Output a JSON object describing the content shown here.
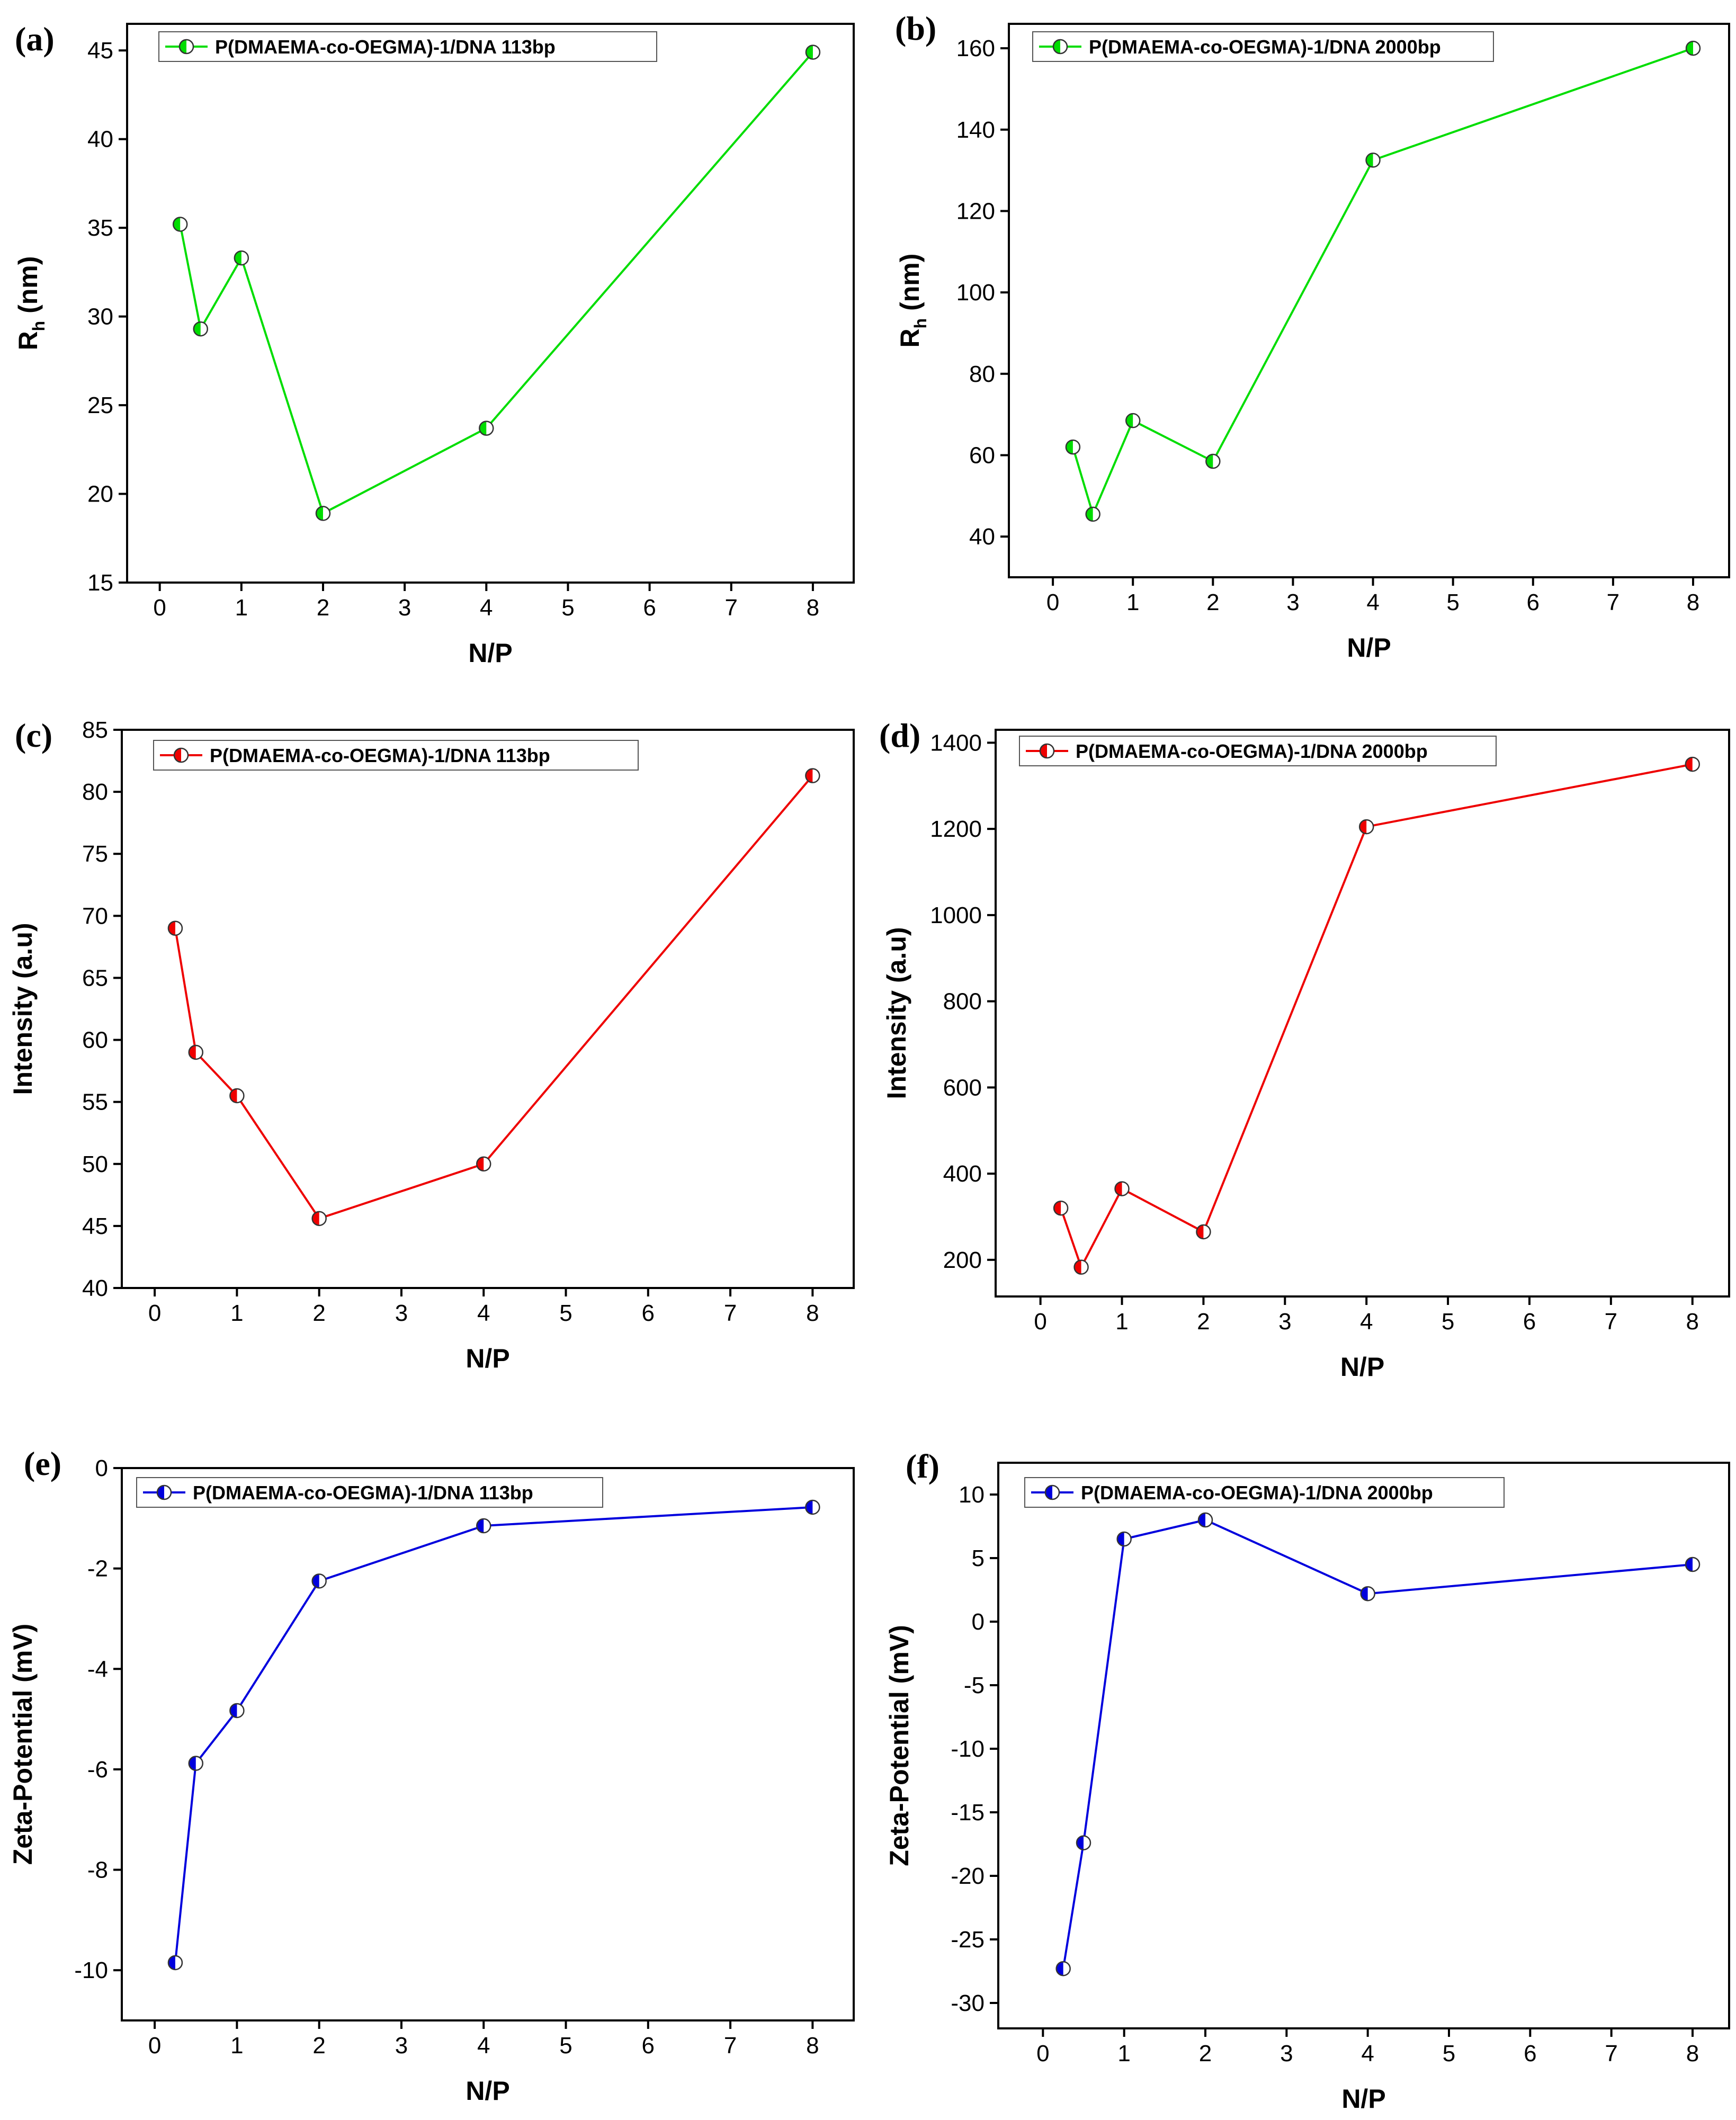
{
  "chart_data": [
    {
      "panel": "(a)",
      "type": "line",
      "x": [
        0.25,
        0.5,
        1,
        2,
        4,
        8
      ],
      "series": [
        {
          "name": "P(DMAEMA-co-OEGMA)-1/DNA 113bp",
          "values": [
            35.2,
            29.3,
            33.3,
            18.9,
            23.7,
            44.9
          ],
          "color": "#00dd00"
        }
      ],
      "xlabel": "N/P",
      "ylabel": "R",
      "ylabel_sub": "h",
      "ylabel_suffix": " (nm)",
      "xlim": [
        -0.4,
        8.5
      ],
      "ylim": [
        15,
        46.5
      ],
      "xticks": [
        0,
        1,
        2,
        3,
        4,
        5,
        6,
        7,
        8
      ],
      "yticks": [
        15,
        20,
        25,
        30,
        35,
        40,
        45
      ],
      "legend_position": "top-left"
    },
    {
      "panel": "(b)",
      "type": "line",
      "x": [
        0.25,
        0.5,
        1,
        2,
        4,
        8
      ],
      "series": [
        {
          "name": "P(DMAEMA-co-OEGMA)-1/DNA 2000bp",
          "values": [
            62,
            45.5,
            68.5,
            58.5,
            132.5,
            160
          ],
          "color": "#00dd00"
        }
      ],
      "xlabel": "N/P",
      "ylabel": "R",
      "ylabel_sub": "h",
      "ylabel_suffix": " (nm)",
      "xlim": [
        -0.55,
        8.45
      ],
      "ylim": [
        30,
        166
      ],
      "xticks": [
        0,
        1,
        2,
        3,
        4,
        5,
        6,
        7,
        8
      ],
      "yticks": [
        40,
        60,
        80,
        100,
        120,
        140,
        160
      ],
      "legend_position": "top-left"
    },
    {
      "panel": "(c)",
      "type": "line",
      "x": [
        0.25,
        0.5,
        1,
        2,
        4,
        8
      ],
      "series": [
        {
          "name": "P(DMAEMA-co-OEGMA)-1/DNA 113bp",
          "values": [
            69,
            59,
            55.5,
            45.6,
            50,
            81.3
          ],
          "color": "#ee0000"
        }
      ],
      "xlabel": "N/P",
      "ylabel": "Intensity (a.u)",
      "xlim": [
        -0.4,
        8.5
      ],
      "ylim": [
        40,
        85
      ],
      "xticks": [
        0,
        1,
        2,
        3,
        4,
        5,
        6,
        7,
        8
      ],
      "yticks": [
        40,
        45,
        50,
        55,
        60,
        65,
        70,
        75,
        80,
        85
      ],
      "legend_position": "top-left"
    },
    {
      "panel": "(d)",
      "type": "line",
      "x": [
        0.25,
        0.5,
        1,
        2,
        4,
        8
      ],
      "series": [
        {
          "name": "P(DMAEMA-co-OEGMA)-1/DNA 2000bp",
          "values": [
            320,
            183,
            365,
            265,
            1205,
            1350
          ],
          "color": "#ee0000"
        }
      ],
      "xlabel": "N/P",
      "ylabel": "Intensity (a.u)",
      "xlim": [
        -0.55,
        8.45
      ],
      "ylim": [
        115,
        1430
      ],
      "xticks": [
        0,
        1,
        2,
        3,
        4,
        5,
        6,
        7,
        8
      ],
      "yticks": [
        200,
        400,
        600,
        800,
        1000,
        1200,
        1400
      ],
      "legend_position": "top-left"
    },
    {
      "panel": "(e)",
      "type": "line",
      "x": [
        0.25,
        0.5,
        1,
        2,
        4,
        8
      ],
      "series": [
        {
          "name": "P(DMAEMA-co-OEGMA)-1/DNA 113bp",
          "values": [
            -9.85,
            -5.88,
            -4.83,
            -2.25,
            -1.15,
            -0.78
          ],
          "color": "#0000dd"
        }
      ],
      "xlabel": "N/P",
      "ylabel": "Zeta-Potential (mV)",
      "xlim": [
        -0.4,
        8.5
      ],
      "ylim": [
        -11,
        0
      ],
      "xticks": [
        0,
        1,
        2,
        3,
        4,
        5,
        6,
        7,
        8
      ],
      "yticks": [
        -10,
        -8,
        -6,
        -4,
        -2,
        0
      ],
      "legend_position": "top-left"
    },
    {
      "panel": "(f)",
      "type": "line",
      "x": [
        0.25,
        0.5,
        1,
        2,
        4,
        8
      ],
      "series": [
        {
          "name": "P(DMAEMA-co-OEGMA)-1/DNA 2000bp",
          "values": [
            -27.3,
            -17.4,
            6.5,
            8,
            2.2,
            4.5
          ],
          "color": "#0000dd"
        }
      ],
      "xlabel": "N/P",
      "ylabel": "Zeta-Potential (mV)",
      "xlim": [
        -0.55,
        8.45
      ],
      "ylim": [
        -32,
        12.5
      ],
      "xticks": [
        0,
        1,
        2,
        3,
        4,
        5,
        6,
        7,
        8
      ],
      "yticks": [
        -30,
        -25,
        -20,
        -15,
        -10,
        -5,
        0,
        5,
        10
      ],
      "legend_position": "top-left"
    }
  ]
}
